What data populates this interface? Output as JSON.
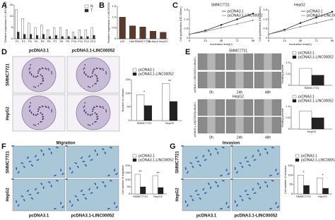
{
  "letters": [
    "A",
    "B",
    "C",
    "D",
    "E",
    "F",
    "G"
  ],
  "D": {
    "columns": [
      "pcDNA3.1",
      "pcDNA3.1-LINC00052"
    ],
    "rows": [
      "SMMC7721",
      "HepG2"
    ]
  },
  "E": {
    "groups": [
      "SMMC7721",
      "HepG2"
    ],
    "times": [
      "0h",
      "24h",
      "48h"
    ],
    "rows": [
      "pcDNA3.1",
      "pcDNA3.1-LINC00052"
    ]
  },
  "F": {
    "title": "Migration",
    "columns": [
      "pcDNA3.1",
      "pcDNA3.1-LINC00052"
    ],
    "rows": [
      "SMMC7721",
      "HepG2"
    ]
  },
  "G": {
    "title": "Invasion",
    "columns": [
      "pcDNA3.1",
      "pcDNA3.1-LINC00052"
    ],
    "rows": [
      "SMMC7721",
      "HepG2"
    ]
  },
  "chart_data": [
    {
      "type": "bar",
      "y_label": "Relative expression of LINC00052",
      "categories": [
        "P1",
        "P2",
        "P3",
        "P4",
        "P5",
        "P6",
        "P7",
        "P8",
        "P9",
        "P10",
        "P11",
        "P12",
        "P13"
      ],
      "series": [
        {
          "name": "N",
          "color": "#ffffff",
          "values": [
            13,
            9,
            7,
            5,
            6,
            4,
            5,
            5,
            4,
            3,
            4,
            4,
            5
          ]
        },
        {
          "name": "T",
          "color": "#333333",
          "values": [
            3,
            2,
            2,
            1.5,
            2,
            1,
            1.5,
            1,
            1,
            1,
            1,
            1,
            1.5
          ]
        }
      ],
      "ylim": [
        0,
        15
      ],
      "yticks": [
        0,
        5,
        10,
        15
      ]
    },
    {
      "type": "bar",
      "y_label": "Relative expression of LINC00052",
      "categories": [
        "L02",
        "Huh7",
        "SMMC7721",
        "Sk-hep1",
        "HepG2"
      ],
      "series": [
        {
          "name": null,
          "color": "#5a3a2a",
          "values": [
            1.0,
            0.6,
            0.55,
            0.35,
            0.3
          ]
        }
      ],
      "ylim": [
        0,
        1.5
      ],
      "yticks": [
        0,
        0.5,
        {
          "value": 1,
          "label": "1.0"
        },
        1.5
      ]
    },
    {
      "type": "line",
      "title": "SMMC7721",
      "y_label": "Cell proliferation (OD 450nm)",
      "x_label": "incubation time(h)",
      "x": [
        0,
        24,
        48,
        72,
        96
      ],
      "series": [
        {
          "name": "pcDNA3.1",
          "color": "#000000",
          "values": [
            0.2,
            0.4,
            0.7,
            1.0,
            1.3
          ]
        },
        {
          "name": "pcDNA3.1-LINC00052",
          "color": "#666666",
          "values": [
            0.2,
            0.35,
            0.55,
            0.75,
            0.95
          ]
        }
      ],
      "xlim": [
        0,
        96
      ],
      "xticks": [
        0,
        24,
        48,
        72,
        96
      ],
      "ylim": [
        0,
        1.5
      ],
      "yticks": [
        0,
        0.5,
        {
          "value": 1,
          "label": "1.0"
        },
        1.5
      ]
    },
    {
      "type": "line",
      "title": "HepG2",
      "y_label": "Cell proliferation (OD 450nm)",
      "x_label": "incubation time(h)",
      "x": [
        0,
        24,
        48,
        72,
        96
      ],
      "series": [
        {
          "name": "pcDNA3.1",
          "color": "#000000",
          "values": [
            0.2,
            0.45,
            0.8,
            1.1,
            1.4
          ]
        },
        {
          "name": "pcDNA3.1-LINC00052",
          "color": "#666666",
          "values": [
            0.2,
            0.4,
            0.6,
            0.8,
            1.0
          ]
        }
      ],
      "xlim": [
        0,
        96
      ],
      "xticks": [
        0,
        24,
        48,
        72,
        96
      ],
      "ylim": [
        0,
        1.5
      ],
      "yticks": [
        0,
        0.5,
        {
          "value": 1,
          "label": "1.0"
        },
        1.5
      ]
    },
    {
      "type": "bar",
      "y_label": "Number of colonies",
      "categories": [
        "SMMC7721",
        "HepG2"
      ],
      "series": [
        {
          "name": "pcDNA3.1",
          "color": "#ffffff",
          "values": [
            95,
            135
          ]
        },
        {
          "name": "pcDNA3.1-LINC00052",
          "color": "#222222",
          "values": [
            55,
            70
          ]
        }
      ],
      "annotations": [
        "*",
        "**"
      ],
      "ylim": [
        0,
        150
      ],
      "yticks": [
        0,
        50,
        100,
        150
      ]
    },
    {
      "type": "bar",
      "y_label": "Healing percent",
      "categories": [
        "SMMC7721"
      ],
      "series": [
        {
          "name": "pcDNA3.1",
          "color": "#ffffff",
          "values": [
            0.75
          ]
        },
        {
          "name": "pcDNA3.1-LINC00052",
          "color": "#222222",
          "values": [
            0.45
          ]
        }
      ],
      "ylim": [
        0,
        1
      ],
      "yticks": [
        0,
        0.5,
        {
          "value": 1,
          "label": "1.0"
        }
      ]
    },
    {
      "type": "bar",
      "y_label": "Healing percent",
      "categories": [
        "HepG2"
      ],
      "series": [
        {
          "name": "pcDNA3.1",
          "color": "#ffffff",
          "values": [
            0.8
          ]
        },
        {
          "name": "pcDNA3.1-LINC00052",
          "color": "#222222",
          "values": [
            0.5
          ]
        }
      ],
      "ylim": [
        0,
        1
      ],
      "yticks": [
        0,
        0.5,
        {
          "value": 1,
          "label": "1.0"
        }
      ]
    },
    {
      "type": "bar",
      "y_label": "Cell number of migration",
      "categories": [
        "SMMC7721",
        "HepG2"
      ],
      "series": [
        {
          "name": "pcDNA3.1",
          "color": "#ffffff",
          "values": [
            140,
            130
          ]
        },
        {
          "name": "pcDNA3.1-LINC00052",
          "color": "#222222",
          "values": [
            50,
            45
          ]
        }
      ],
      "annotations": [
        "**",
        "**"
      ],
      "ylim": [
        0,
        200
      ],
      "yticks": [
        0,
        50,
        100,
        150,
        200
      ]
    },
    {
      "type": "bar",
      "y_label": "Cell number of invasion",
      "categories": [
        "SMMC7721",
        "HepG2"
      ],
      "series": [
        {
          "name": "pcDNA3.1",
          "color": "#ffffff",
          "values": [
            100,
            85
          ]
        },
        {
          "name": "pcDNA3.1-LINC00052",
          "color": "#222222",
          "values": [
            45,
            30
          ]
        }
      ],
      "annotations": [
        "*",
        "*"
      ],
      "ylim": [
        0,
        150
      ],
      "yticks": [
        0,
        50,
        100,
        150
      ]
    }
  ]
}
